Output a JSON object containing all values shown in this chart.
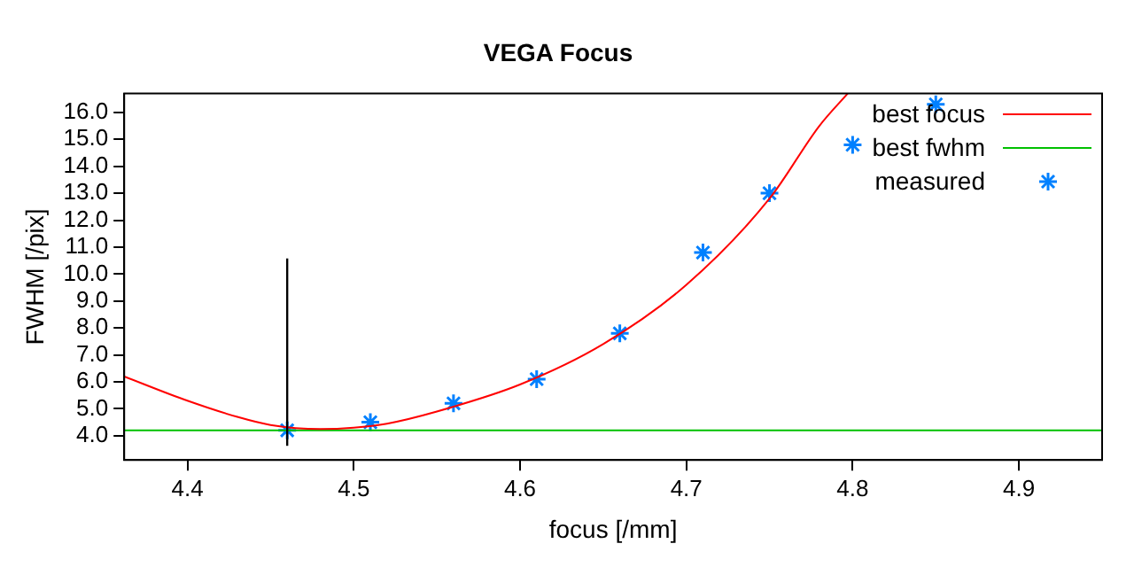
{
  "chart_data": {
    "type": "scatter",
    "title": "VEGA Focus",
    "xlabel": "focus [/mm]",
    "ylabel": "FWHM [/pix]",
    "xlim": [
      4.362,
      4.95
    ],
    "ylim": [
      3.1,
      16.7
    ],
    "xticks": [
      4.4,
      4.5,
      4.6,
      4.7,
      4.8,
      4.9
    ],
    "yticks": [
      {
        "value": 4,
        "label": "4.0"
      },
      {
        "value": 5,
        "label": "5.0"
      },
      {
        "value": 6,
        "label": "6.0"
      },
      {
        "value": 7,
        "label": "7.0"
      },
      {
        "value": 8,
        "label": "8.0"
      },
      {
        "value": 9,
        "label": "9.0"
      },
      {
        "value": 10,
        "label": "10.0"
      },
      {
        "value": 11,
        "label": "11.0"
      },
      {
        "value": 12,
        "label": "12.0"
      },
      {
        "value": 13,
        "label": "13.0"
      },
      {
        "value": 14,
        "label": "14.0"
      },
      {
        "value": 15,
        "label": "15.0"
      },
      {
        "value": 16,
        "label": "16.0"
      }
    ],
    "grid": false,
    "legend": "top right",
    "series": [
      {
        "name": "best focus",
        "type": "line",
        "color": "#ff0000",
        "marker": "none",
        "x": [
          4.362,
          4.4,
          4.43,
          4.45,
          4.48,
          4.5,
          4.52,
          4.55,
          4.6,
          4.65,
          4.7,
          4.75,
          4.78,
          4.797
        ],
        "values": [
          6.2,
          5.3,
          4.7,
          4.4,
          4.25,
          4.3,
          4.45,
          4.9,
          5.9,
          7.4,
          9.6,
          12.8,
          15.5,
          16.7
        ]
      },
      {
        "name": "best fwhm",
        "type": "line",
        "color": "#00c000",
        "marker": "none",
        "x": [
          4.362,
          4.95
        ],
        "values": [
          4.2,
          4.2
        ]
      },
      {
        "name": "measured",
        "color": "#0080ff",
        "marker": "cross",
        "x": [
          4.46,
          4.51,
          4.56,
          4.61,
          4.66,
          4.71,
          4.75,
          4.8,
          4.85
        ],
        "values": [
          4.2,
          4.5,
          5.2,
          6.1,
          7.8,
          10.8,
          13.0,
          14.8,
          16.3
        ]
      }
    ],
    "ref_lines": [
      {
        "axis": "x",
        "value": 4.46,
        "color": "#000000"
      }
    ]
  }
}
